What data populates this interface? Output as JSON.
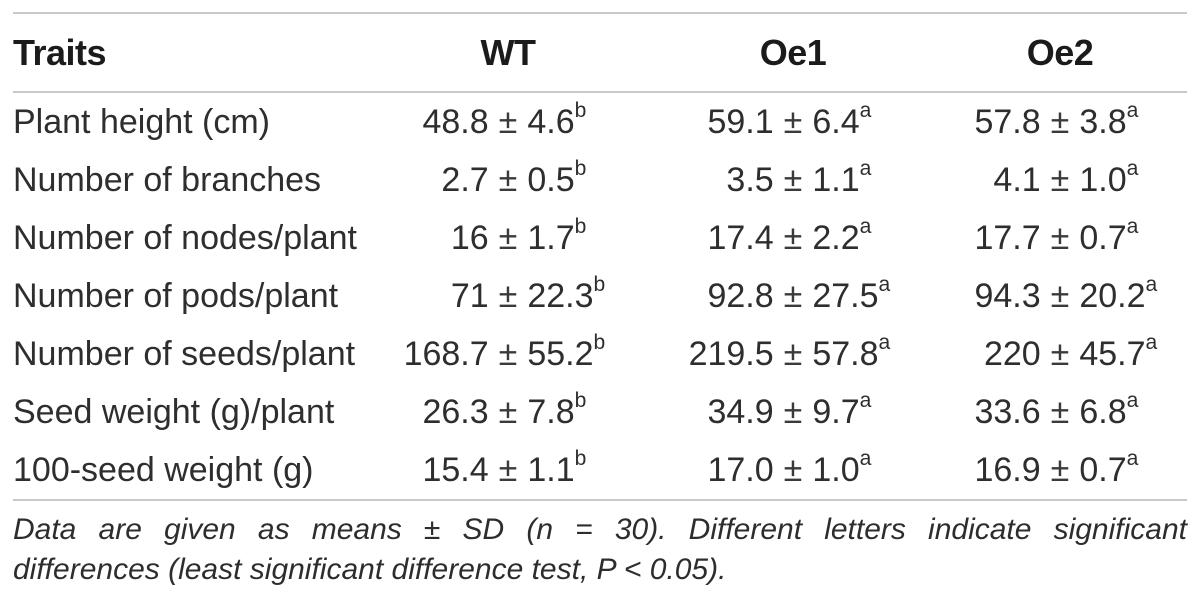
{
  "table": {
    "header": {
      "traits": "Traits",
      "wt": "WT",
      "oe1": "Oe1",
      "oe2": "Oe2"
    },
    "plus_minus": "±",
    "rows": [
      {
        "trait": "Plant height (cm)",
        "values": [
          {
            "mean": "48.8",
            "sd": "4.6",
            "sig": "b"
          },
          {
            "mean": "59.1",
            "sd": "6.4",
            "sig": "a"
          },
          {
            "mean": "57.8",
            "sd": "3.8",
            "sig": "a"
          }
        ]
      },
      {
        "trait": "Number of branches",
        "values": [
          {
            "mean": "2.7",
            "sd": "0.5",
            "sig": "b"
          },
          {
            "mean": "3.5",
            "sd": "1.1",
            "sig": "a"
          },
          {
            "mean": "4.1",
            "sd": "1.0",
            "sig": "a"
          }
        ]
      },
      {
        "trait": "Number of nodes/plant",
        "values": [
          {
            "mean": "16",
            "sd": "1.7",
            "sig": "b"
          },
          {
            "mean": "17.4",
            "sd": "2.2",
            "sig": "a"
          },
          {
            "mean": "17.7",
            "sd": "0.7",
            "sig": "a"
          }
        ]
      },
      {
        "trait": "Number of pods/plant",
        "values": [
          {
            "mean": "71",
            "sd": "22.3",
            "sig": "b"
          },
          {
            "mean": "92.8",
            "sd": "27.5",
            "sig": "a"
          },
          {
            "mean": "94.3",
            "sd": "20.2",
            "sig": "a"
          }
        ]
      },
      {
        "trait": "Number of seeds/plant",
        "values": [
          {
            "mean": "168.7",
            "sd": "55.2",
            "sig": "b"
          },
          {
            "mean": "219.5",
            "sd": "57.8",
            "sig": "a"
          },
          {
            "mean": "220",
            "sd": "45.7",
            "sig": "a"
          }
        ]
      },
      {
        "trait": "Seed weight (g)/plant",
        "values": [
          {
            "mean": "26.3",
            "sd": "7.8",
            "sig": "b"
          },
          {
            "mean": "34.9",
            "sd": "9.7",
            "sig": "a"
          },
          {
            "mean": "33.6",
            "sd": "6.8",
            "sig": "a"
          }
        ]
      },
      {
        "trait": "100-seed weight (g)",
        "values": [
          {
            "mean": "15.4",
            "sd": "1.1",
            "sig": "b"
          },
          {
            "mean": "17.0",
            "sd": "1.0",
            "sig": "a"
          },
          {
            "mean": "16.9",
            "sd": "0.7",
            "sig": "a"
          }
        ]
      }
    ],
    "footnote": {
      "line1": "Data are given as means ± SD (n = 30). Different letters indicate significant",
      "line2": "differences (least significant difference test, P < 0.05)."
    },
    "colors": {
      "rule": "#c9c9c9",
      "body_text": "#2e2e2e",
      "header_text": "#1b1b1b"
    }
  }
}
